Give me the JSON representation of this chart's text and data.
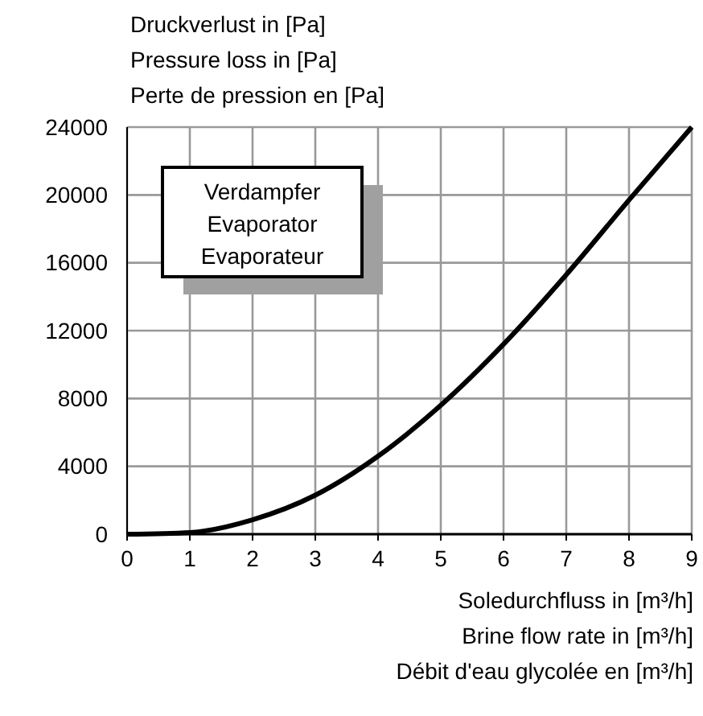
{
  "chart_data": {
    "type": "line",
    "ylabel": "Druckverlust in [Pa]\nPressure loss in [Pa]\nPerte de pression en [Pa]",
    "xlabel": "Soledurchfluss in [m³/h]\nBrine flow rate in [m³/h]\nDébit d'eau glycolée en [m³/h]",
    "annotations": [
      "Verdampfer\nEvaporator\nEvaporateur"
    ],
    "x": [
      0,
      1,
      2,
      3,
      4,
      5,
      6,
      7,
      8,
      9
    ],
    "series": [
      {
        "color": "#000000",
        "values": [
          0,
          100,
          850,
          2300,
          4600,
          7600,
          11200,
          15300,
          19700,
          24000
        ]
      }
    ],
    "xlim": [
      0,
      9
    ],
    "xticks": [
      0,
      1,
      2,
      3,
      4,
      5,
      6,
      7,
      8,
      9
    ],
    "ylim": [
      0,
      24000
    ],
    "yticks": [
      0,
      4000,
      8000,
      12000,
      16000,
      20000,
      24000
    ],
    "grid": true,
    "marker": "none",
    "line_style": "solid"
  }
}
